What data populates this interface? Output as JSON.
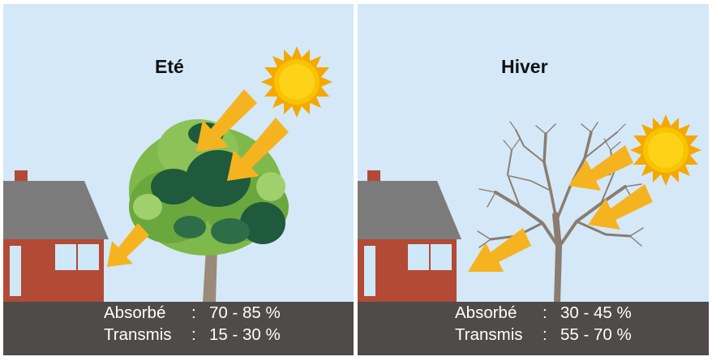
{
  "panels": [
    {
      "season": "Eté",
      "stats": [
        {
          "label": "Absorbé",
          "value": "70 - 85 %"
        },
        {
          "label": "Transmis",
          "value": "15 - 30 %"
        }
      ]
    },
    {
      "season": "Hiver",
      "stats": [
        {
          "label": "Absorbé",
          "value": "30 - 45 %"
        },
        {
          "label": "Transmis",
          "value": "55 - 70 %"
        }
      ]
    }
  ],
  "separator": ":",
  "colors": {
    "sky": "#d4e8f7",
    "ground": "#4f4b4a",
    "brick": "#b24a35",
    "roof": "#7b7b7b",
    "arrow": "#f5b320",
    "sun": "#f8c300",
    "leaf_light": "#7fb84b",
    "leaf_dark": "#1f5a3c"
  },
  "icons": [
    "sun-icon",
    "house-icon",
    "tree-icon",
    "sun-ray-arrow-icon"
  ]
}
